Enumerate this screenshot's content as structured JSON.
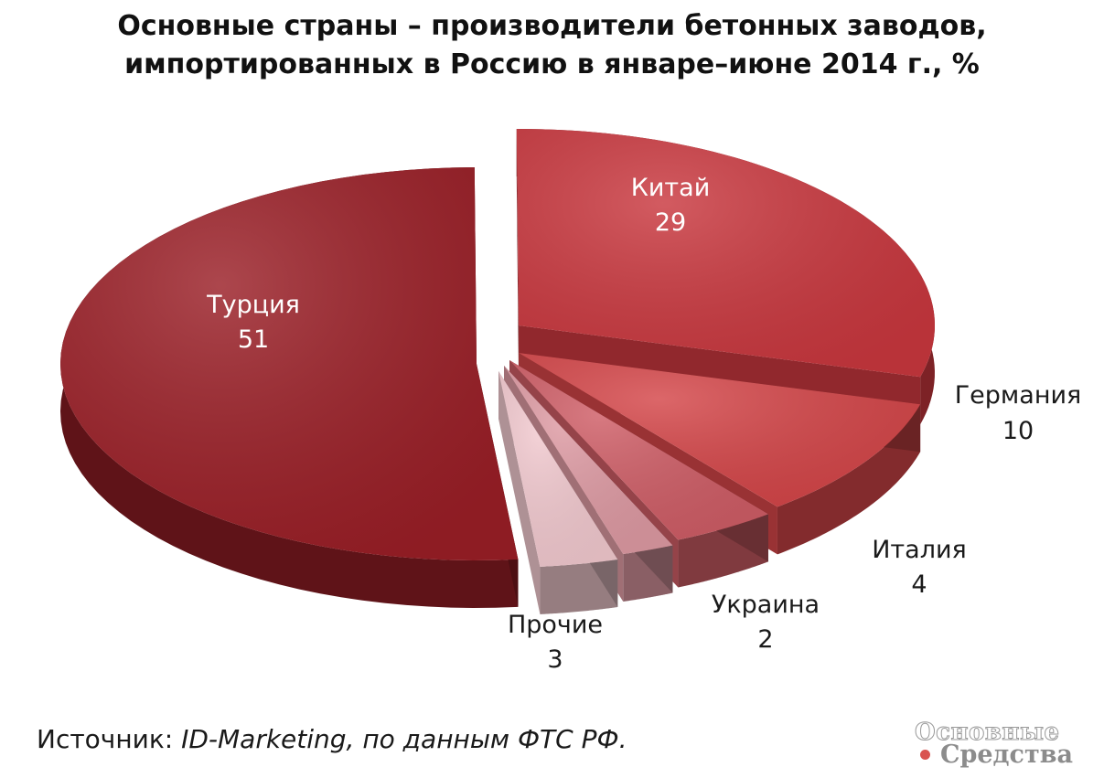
{
  "title": {
    "line1": "Основные страны – производители бетонных заводов,",
    "line2": "импортированных в Россию в январе–июне 2014 г., %"
  },
  "chart_data": {
    "type": "pie",
    "title": "Основные страны – производители бетонных заводов, импортированных в Россию в январе–июне 2014 г., %",
    "categories": [
      "Турция",
      "Китай",
      "Германия",
      "Италия",
      "Украина",
      "Прочие"
    ],
    "values": [
      51,
      29,
      10,
      4,
      2,
      3
    ],
    "colors": [
      "#9a1e26",
      "#c9373e",
      "#d44548",
      "#cf5d66",
      "#de9aa3",
      "#f2c9cf"
    ],
    "labels": [
      {
        "name": "Турция",
        "value": "51"
      },
      {
        "name": "Китай",
        "value": "29"
      },
      {
        "name": "Германия",
        "value": "10"
      },
      {
        "name": "Италия",
        "value": "4"
      },
      {
        "name": "Украина",
        "value": "2"
      },
      {
        "name": "Прочие",
        "value": "3"
      }
    ]
  },
  "source": {
    "prefix": "Источник: ",
    "text": "ID-Marketing, по данным ФТС РФ."
  },
  "logo": {
    "line1": "Основные",
    "line2": "Средства"
  }
}
